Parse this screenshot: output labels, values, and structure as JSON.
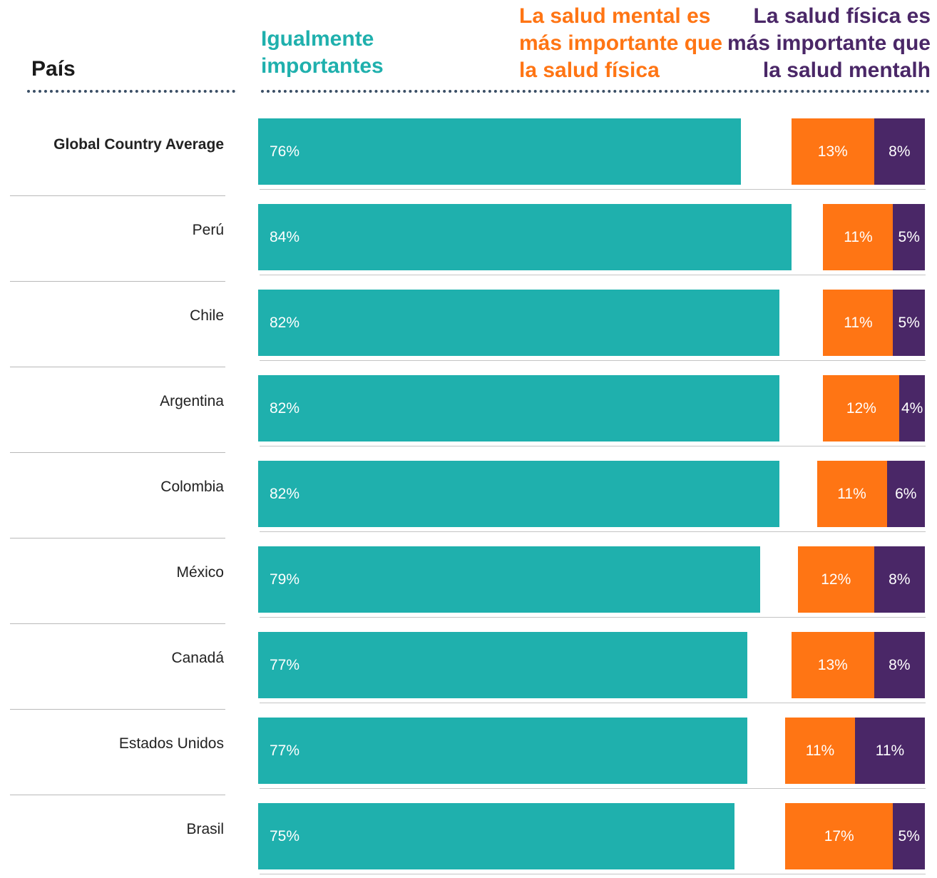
{
  "headers": {
    "country": "País",
    "equal": "Igualmente\nimportantes",
    "mental_more": "La salud mental es\nmás importante que\nla salud física",
    "physical_more": "La salud física es\nmás importante que\nla salud mentalh"
  },
  "colors": {
    "equal": "#1fb0ad",
    "mental_more": "#ff7514",
    "physical_more": "#4a2767",
    "text": "#222222"
  },
  "chart_data": {
    "type": "bar",
    "orientation": "horizontal",
    "stacked": true,
    "categories": [
      "Global Country Average",
      "Perú",
      "Chile",
      "Argentina",
      "Colombia",
      "México",
      "Canadá",
      "Estados Unidos",
      "Brasil"
    ],
    "series": [
      {
        "name": "Igualmente importantes",
        "values": [
          76,
          84,
          82,
          82,
          82,
          79,
          77,
          77,
          75
        ],
        "labels": [
          "76%",
          "84%",
          "82%",
          "82%",
          "82%",
          "79%",
          "77%",
          "77%",
          "75%"
        ]
      },
      {
        "name": "La salud mental es más importante que la salud física",
        "values": [
          13,
          11,
          11,
          12,
          11,
          12,
          13,
          11,
          17
        ],
        "labels": [
          "13%",
          "11%",
          "11%",
          "12%",
          "11%",
          "12%",
          "13%",
          "11%",
          "17%"
        ]
      },
      {
        "name": "La salud física es más importante que la salud mentalh",
        "values": [
          8,
          5,
          5,
          4,
          6,
          8,
          8,
          11,
          5
        ],
        "labels": [
          "8%",
          "5%",
          "5%",
          "4%",
          "6%",
          "8%",
          "8%",
          "11%",
          "5%"
        ]
      }
    ],
    "xlim": [
      0,
      100
    ],
    "grid": false,
    "legend": "top"
  }
}
